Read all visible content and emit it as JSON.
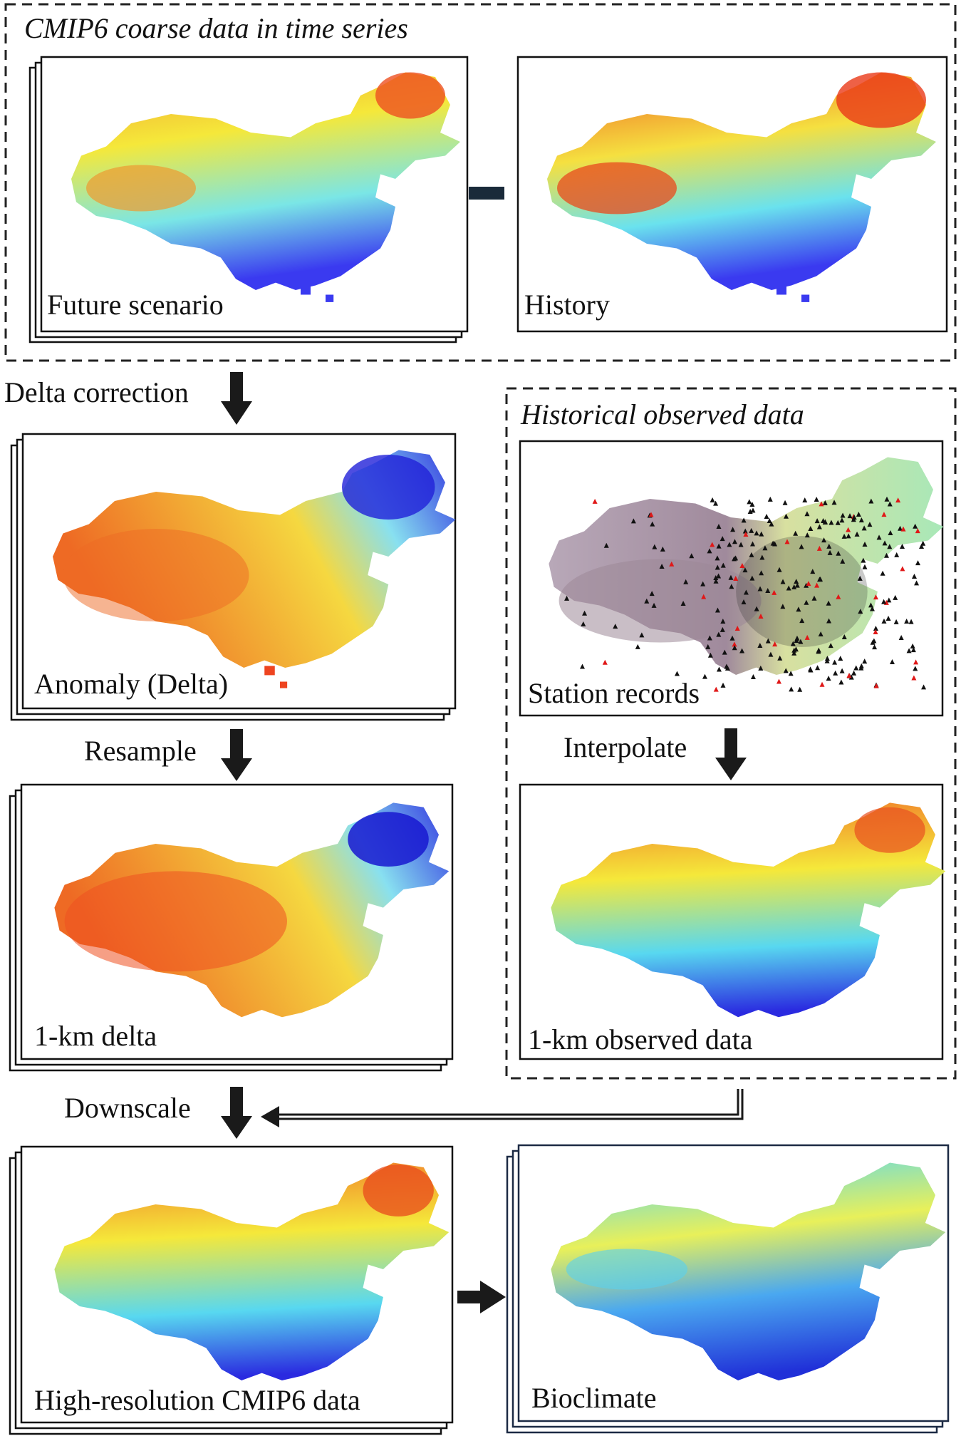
{
  "sections": {
    "cmip6": "CMIP6 coarse data in time series",
    "observed": "Historical observed data"
  },
  "panels": {
    "future_scenario": "Future scenario",
    "history": "History",
    "anomaly": "Anomaly (Delta)",
    "delta_1km": "1-km delta",
    "station_records": "Station records",
    "observed_1km": "1-km observed data",
    "high_res": "High-resolution CMIP6 data",
    "bioclimate": "Bioclimate"
  },
  "operators": {
    "minus": "minus"
  },
  "steps": {
    "delta_correction": "Delta correction",
    "resample": "Resample",
    "interpolate": "Interpolate",
    "downscale": "Downscale"
  },
  "colors": {
    "ink": "#111111",
    "dash": "#222222",
    "bioclimate_frame": "#1c2a44",
    "warm": "#e8401c",
    "mid": "#f5e83a",
    "cool": "#58d8f0",
    "cold": "#2a2ae0"
  }
}
